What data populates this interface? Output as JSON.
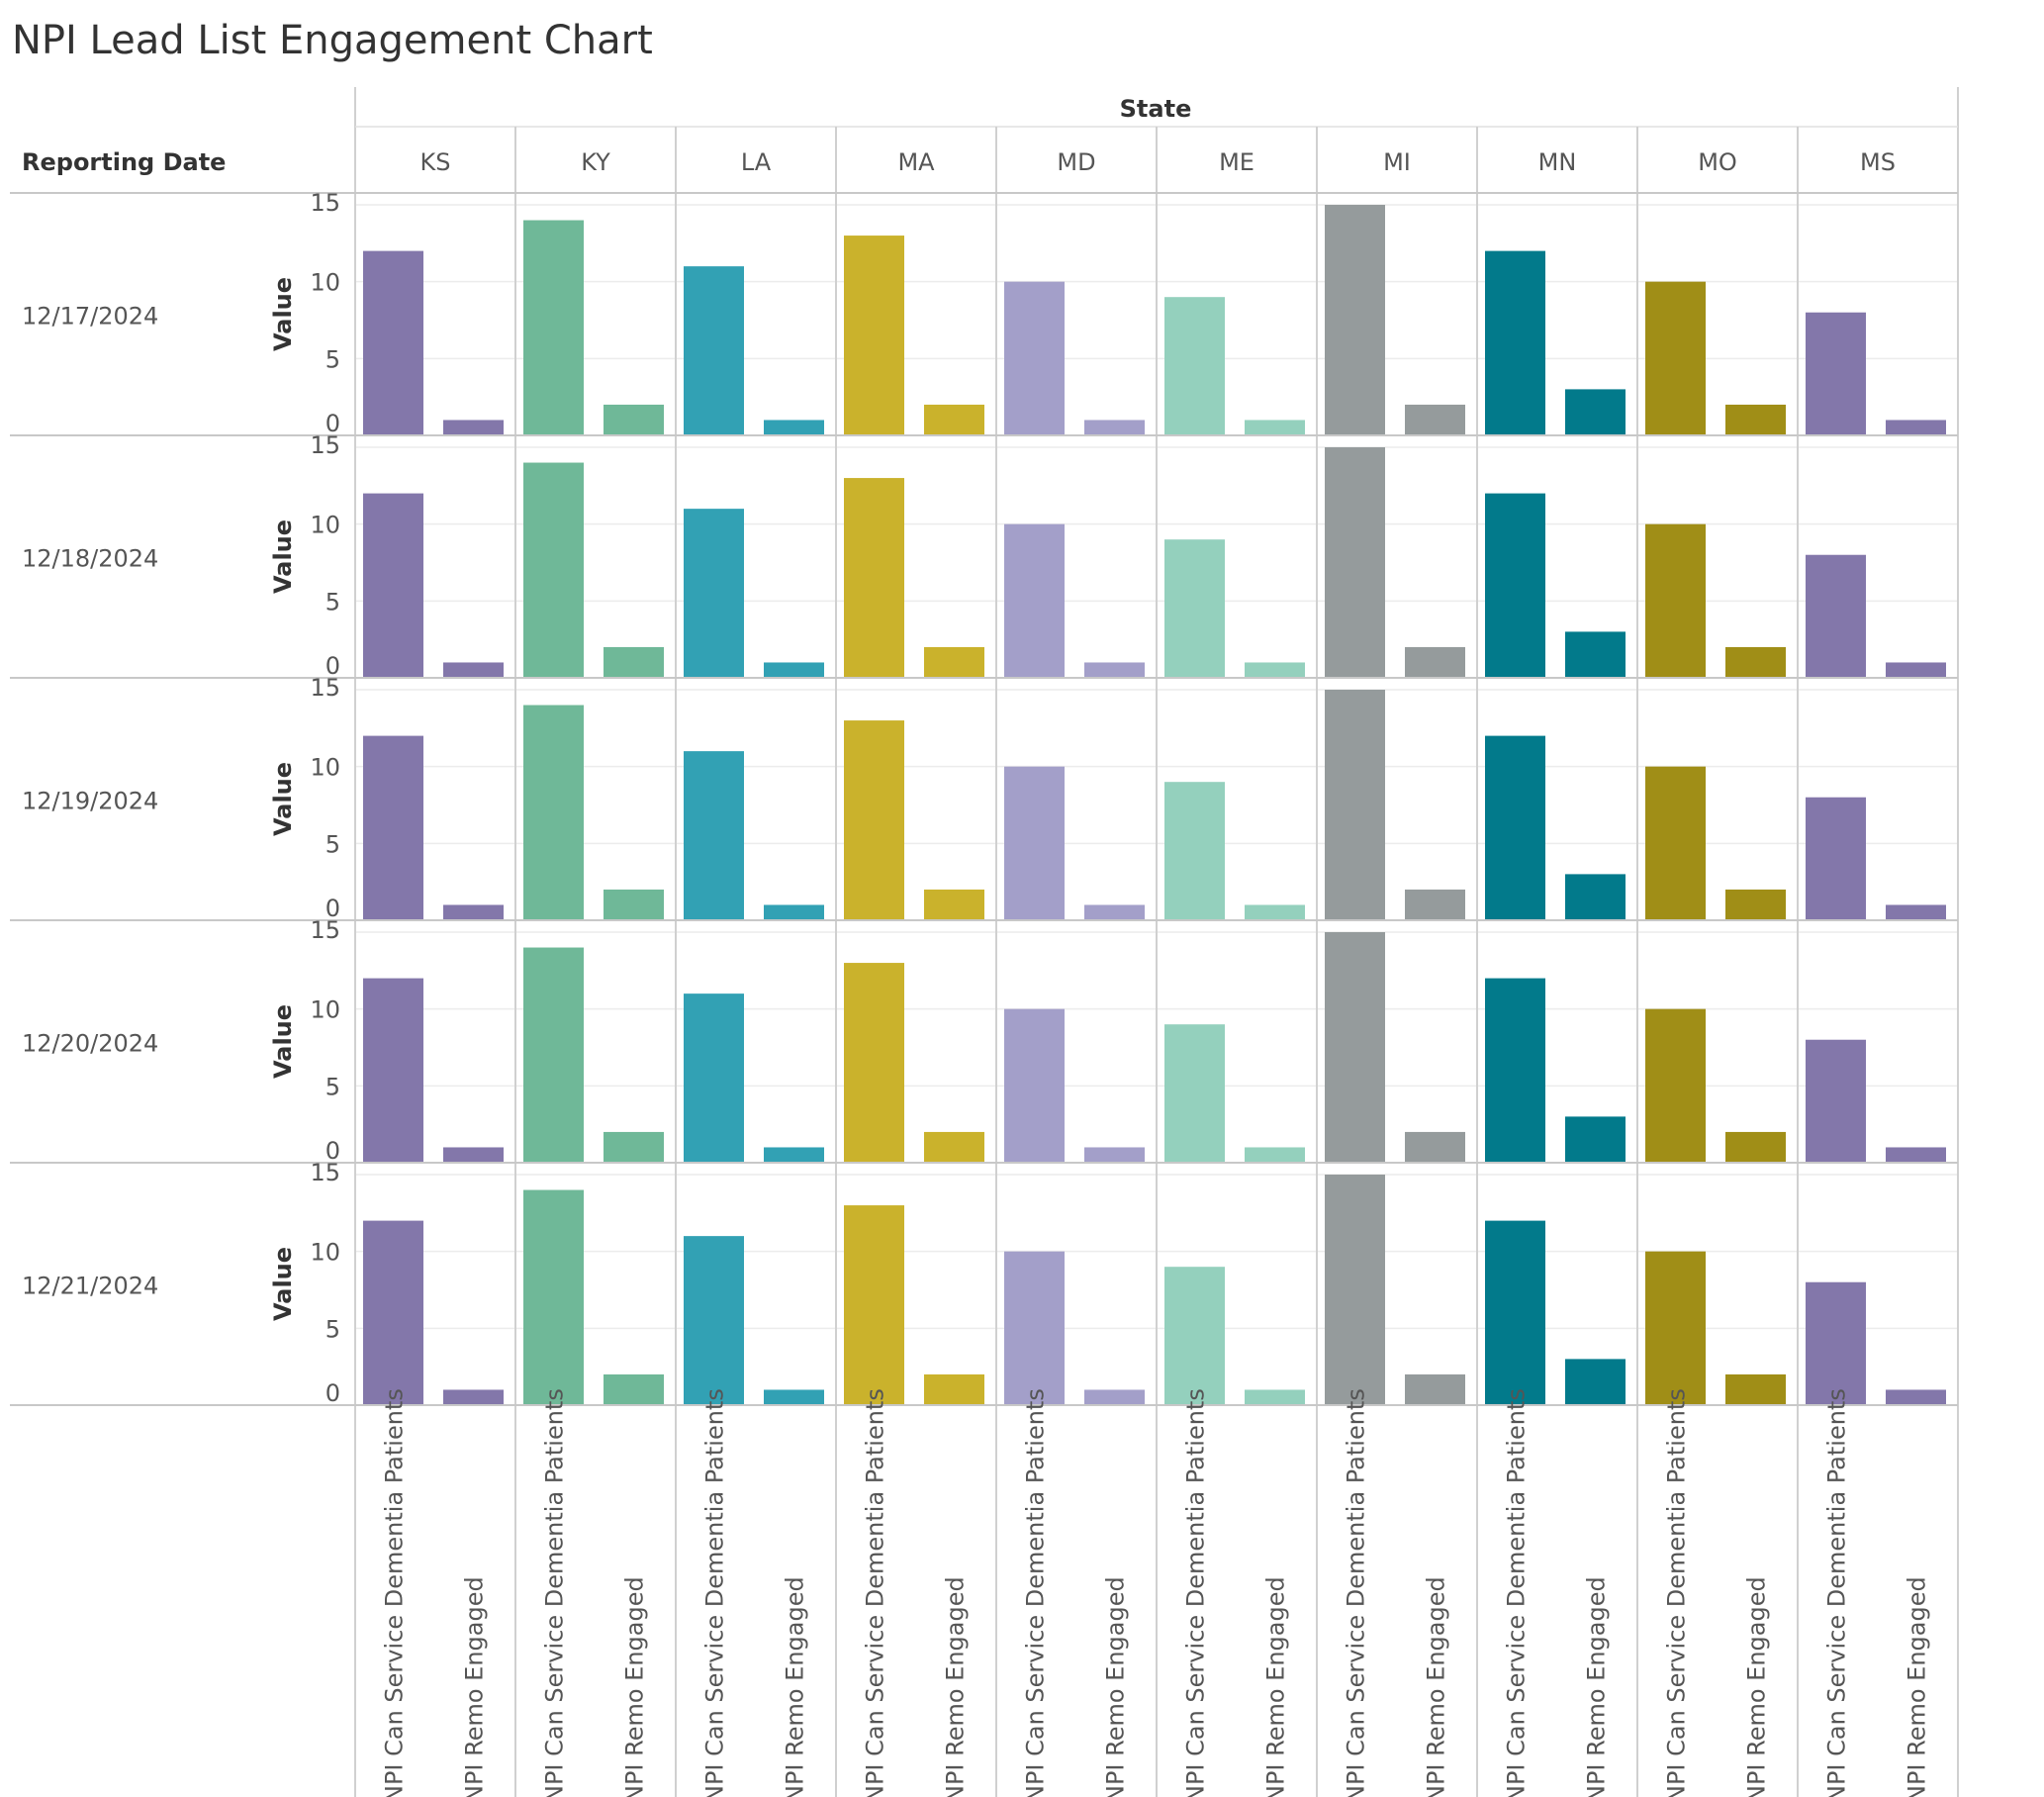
{
  "title": "NPI Lead List Engagement Chart",
  "chart_data": {
    "type": "bar",
    "column_header": "State",
    "row_header": "Reporting Date",
    "ylabel": "Value",
    "ylim": [
      0,
      15
    ],
    "yticks": [
      0,
      5,
      10,
      15
    ],
    "states": [
      "KS",
      "KY",
      "LA",
      "MA",
      "MD",
      "ME",
      "MI",
      "MN",
      "MO",
      "MS"
    ],
    "dates": [
      "12/17/2024",
      "12/18/2024",
      "12/19/2024",
      "12/20/2024",
      "12/21/2024"
    ],
    "categories": [
      "NPI Can Service Dementia Patients",
      "NPI Remo Engaged"
    ],
    "state_colors": {
      "KS": "#8377aa",
      "KY": "#6fb898",
      "LA": "#32a1b4",
      "MA": "#cab22c",
      "MD": "#a39fc9",
      "ME": "#94d0bd",
      "MI": "#959b9c",
      "MN": "#027a8b",
      "MO": "#a08e17",
      "MS": "#8377aa"
    },
    "values": {
      "KS": [
        12,
        1
      ],
      "KY": [
        14,
        2
      ],
      "LA": [
        11,
        1
      ],
      "MA": [
        13,
        2
      ],
      "MD": [
        10,
        1
      ],
      "ME": [
        9,
        1
      ],
      "MI": [
        15,
        2
      ],
      "MN": [
        12,
        3
      ],
      "MO": [
        10,
        2
      ],
      "MS": [
        8,
        1
      ]
    },
    "grid": true
  }
}
